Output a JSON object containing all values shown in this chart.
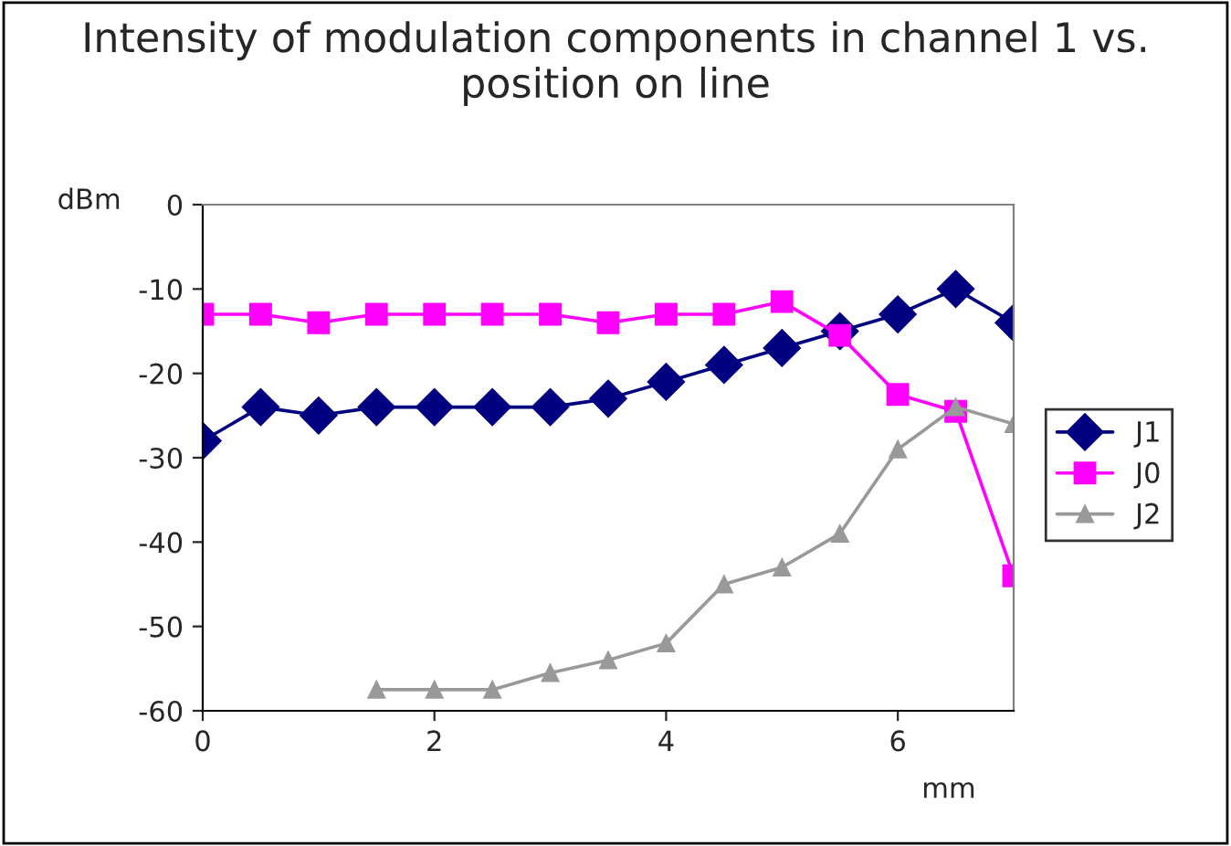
{
  "chart_data": {
    "type": "line",
    "title": "Intensity of modulation components in channel 1 vs. position on line",
    "xlabel": "mm",
    "ylabel": "dBm",
    "xlim": [
      0,
      7
    ],
    "xticks": [
      0,
      2,
      4,
      6
    ],
    "ylim": [
      -60,
      0
    ],
    "yticks": [
      -60,
      -50,
      -40,
      -30,
      -20,
      -10,
      0
    ],
    "grid": false,
    "legend": "right",
    "series": [
      {
        "name": "J1",
        "color": "#000080",
        "marker": "diamond",
        "x": [
          0,
          0.5,
          1,
          1.5,
          2,
          2.5,
          3,
          3.5,
          4,
          4.5,
          5,
          5.5,
          6,
          6.5,
          7
        ],
        "values": [
          -28,
          -24,
          -25,
          -24,
          -24,
          -24,
          -24,
          -23,
          -21,
          -19,
          -17,
          -15,
          -13,
          -10,
          -14
        ]
      },
      {
        "name": "J0",
        "color": "#ff00ff",
        "marker": "square",
        "x": [
          0,
          0.5,
          1,
          1.5,
          2,
          2.5,
          3,
          3.5,
          4,
          4.5,
          5,
          5.5,
          6,
          6.5,
          7
        ],
        "values": [
          -13,
          -13,
          -14,
          -13,
          -13,
          -13,
          -13,
          -14,
          -13,
          -13,
          -11.5,
          -15.5,
          -22.5,
          -24.5,
          -44
        ]
      },
      {
        "name": "J2",
        "color": "#999999",
        "marker": "triangle",
        "x": [
          1.5,
          2,
          2.5,
          3,
          3.5,
          4,
          4.5,
          5,
          5.5,
          6,
          6.5,
          7
        ],
        "values": [
          -57.5,
          -57.5,
          -57.5,
          -55.5,
          -54,
          -52,
          -45,
          -43,
          -39,
          -29,
          -24,
          -26
        ]
      }
    ]
  }
}
